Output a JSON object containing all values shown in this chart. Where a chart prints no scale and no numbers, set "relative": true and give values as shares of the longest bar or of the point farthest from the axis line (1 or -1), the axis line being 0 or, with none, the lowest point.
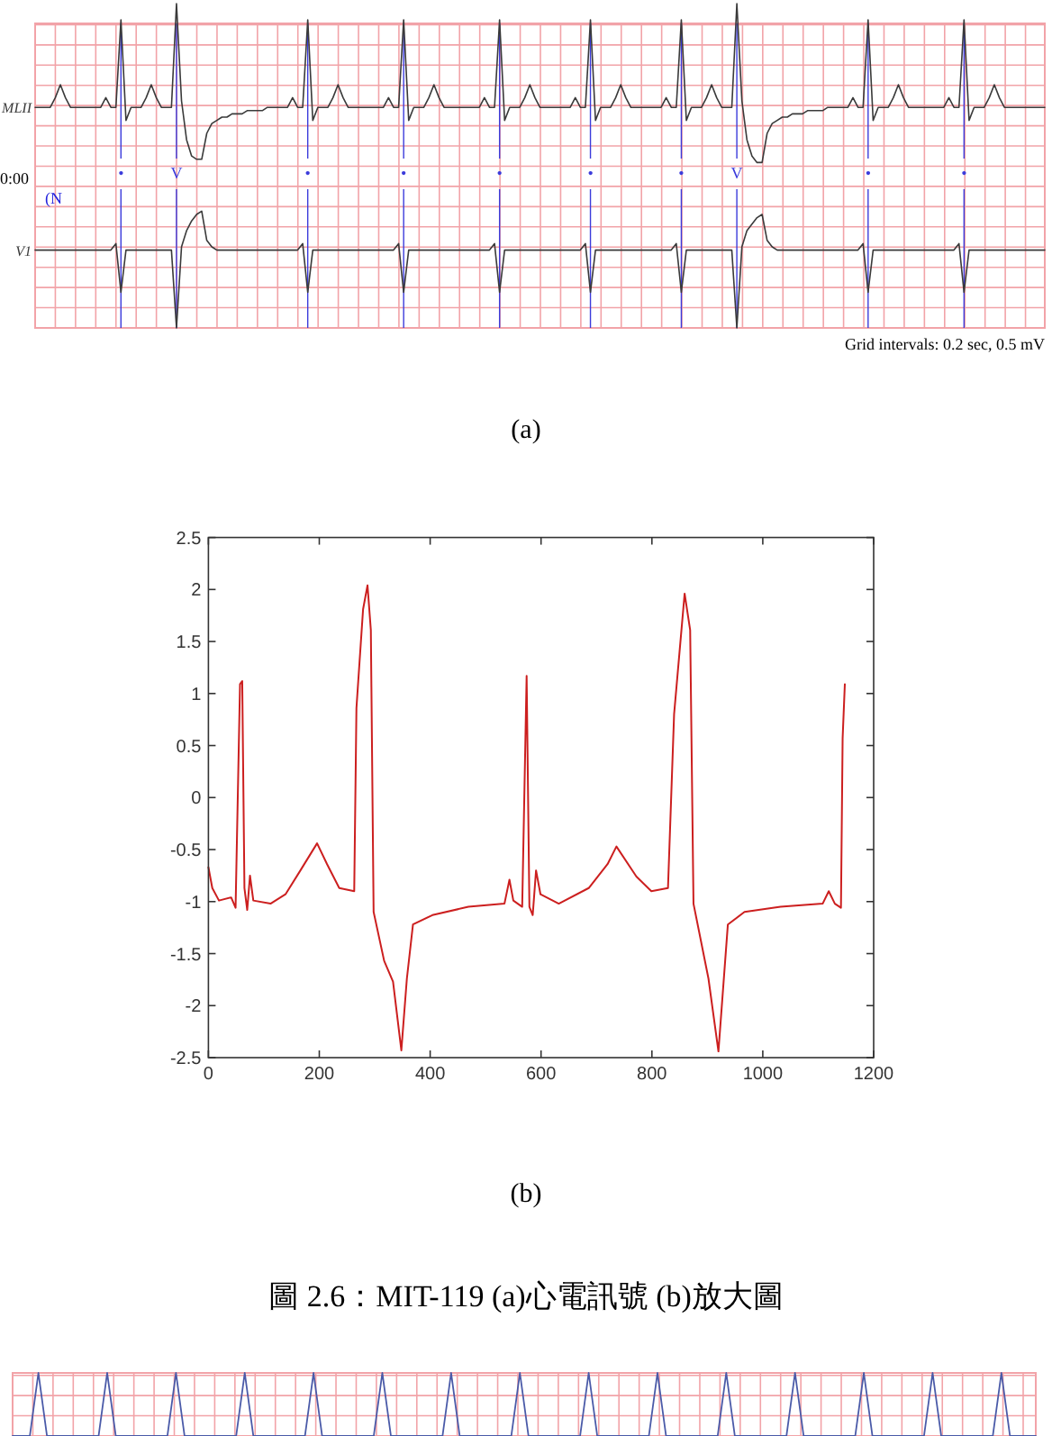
{
  "chart_data": [
    {
      "type": "line",
      "relative": true,
      "grid": true,
      "categories": [
        null,
        null,
        null,
        null,
        null,
        null,
        null,
        null,
        null,
        null,
        null,
        null,
        null,
        null,
        null,
        null,
        null,
        "•",
        null,
        null,
        null,
        null,
        null,
        null,
        null,
        null,
        null,
        null,
        "V",
        null,
        null,
        null,
        null,
        null,
        null,
        null,
        null,
        null,
        null,
        null,
        null,
        null,
        null,
        null,
        null,
        null,
        null,
        null,
        null,
        null,
        null,
        null,
        null,
        null,
        "•",
        null,
        null,
        null,
        null,
        null,
        null,
        null,
        null,
        null,
        null,
        null,
        null,
        null,
        null,
        null,
        null,
        null,
        null,
        "•",
        null,
        null,
        null,
        null,
        null,
        null,
        null,
        null,
        null,
        null,
        null,
        null,
        null,
        null,
        null,
        null,
        null,
        null,
        "•",
        null,
        null,
        null,
        null,
        null,
        null,
        null,
        null,
        null,
        null,
        null,
        null,
        null,
        null,
        null,
        null,
        null,
        "•",
        null,
        null,
        null,
        null,
        null,
        null,
        null,
        null,
        null,
        null,
        null,
        null,
        null,
        null,
        null,
        null,
        null,
        "•",
        null,
        null,
        null,
        null,
        null,
        null,
        null,
        null,
        null,
        null,
        "V",
        null,
        null,
        null,
        null,
        null,
        null,
        null,
        null,
        null,
        null,
        null,
        null,
        null,
        null,
        null,
        null,
        null,
        null,
        null,
        null,
        null,
        null,
        null,
        null,
        null,
        "•",
        null,
        null,
        null,
        null,
        null,
        null,
        null,
        null,
        null,
        null,
        null,
        null,
        null,
        null,
        null,
        null,
        null,
        null,
        "•",
        null,
        null,
        null,
        null,
        null,
        null,
        null,
        null,
        null,
        null,
        null,
        null,
        null,
        null,
        null,
        null
      ],
      "series": [
        {
          "name": "MLII",
          "color": "#3a3a3a",
          "values": [
            0.68,
            0.68,
            0.68,
            0.68,
            0.71,
            0.75,
            0.71,
            0.68,
            0.68,
            0.68,
            0.68,
            0.68,
            0.68,
            0.68,
            0.71,
            0.68,
            0.68,
            0.95,
            0.64,
            0.68,
            0.68,
            0.68,
            0.71,
            0.75,
            0.71,
            0.68,
            0.68,
            0.68,
            1,
            0.7,
            0.58,
            0.53,
            0.52,
            0.52,
            0.6,
            0.63,
            0.64,
            0.65,
            0.65,
            0.66,
            0.66,
            0.66,
            0.67,
            0.67,
            0.67,
            0.67,
            0.68,
            0.68,
            0.68,
            0.68,
            0.68,
            0.71,
            0.68,
            0.68,
            0.95,
            0.64,
            0.68,
            0.68,
            0.68,
            0.71,
            0.75,
            0.71,
            0.68,
            0.68,
            0.68,
            0.68,
            0.68,
            0.68,
            0.68,
            0.68,
            0.71,
            0.68,
            0.68,
            0.95,
            0.64,
            0.68,
            0.68,
            0.68,
            0.71,
            0.75,
            0.71,
            0.68,
            0.68,
            0.68,
            0.68,
            0.68,
            0.68,
            0.68,
            0.68,
            0.71,
            0.68,
            0.68,
            0.95,
            0.64,
            0.68,
            0.68,
            0.68,
            0.71,
            0.75,
            0.71,
            0.68,
            0.68,
            0.68,
            0.68,
            0.68,
            0.68,
            0.68,
            0.71,
            0.68,
            0.68,
            0.95,
            0.64,
            0.68,
            0.68,
            0.68,
            0.71,
            0.75,
            0.71,
            0.68,
            0.68,
            0.68,
            0.68,
            0.68,
            0.68,
            0.68,
            0.71,
            0.68,
            0.68,
            0.95,
            0.64,
            0.68,
            0.68,
            0.68,
            0.71,
            0.75,
            0.71,
            0.68,
            0.68,
            0.68,
            1,
            0.7,
            0.58,
            0.53,
            0.51,
            0.51,
            0.6,
            0.63,
            0.64,
            0.65,
            0.65,
            0.66,
            0.66,
            0.66,
            0.67,
            0.67,
            0.67,
            0.67,
            0.68,
            0.68,
            0.68,
            0.68,
            0.68,
            0.71,
            0.68,
            0.68,
            0.95,
            0.64,
            0.68,
            0.68,
            0.68,
            0.71,
            0.75,
            0.71,
            0.68,
            0.68,
            0.68,
            0.68,
            0.68,
            0.68,
            0.68,
            0.68,
            0.71,
            0.68,
            0.68,
            0.95,
            0.64,
            0.68,
            0.68,
            0.68,
            0.71,
            0.75,
            0.71,
            0.68,
            0.68,
            0.68,
            0.68,
            0.68,
            0.68,
            0.68,
            0.68,
            0.68
          ]
        },
        {
          "name": "V1",
          "color": "#3a3a3a",
          "values": [
            0.24,
            0.24,
            0.24,
            0.24,
            0.24,
            0.24,
            0.24,
            0.24,
            0.24,
            0.24,
            0.24,
            0.24,
            0.24,
            0.24,
            0.24,
            0.24,
            0.26,
            0.11,
            0.24,
            0.24,
            0.24,
            0.24,
            0.24,
            0.24,
            0.24,
            0.24,
            0.24,
            0.24,
            0,
            0.25,
            0.3,
            0.33,
            0.35,
            0.36,
            0.27,
            0.25,
            0.24,
            0.24,
            0.24,
            0.24,
            0.24,
            0.24,
            0.24,
            0.24,
            0.24,
            0.24,
            0.24,
            0.24,
            0.24,
            0.24,
            0.24,
            0.24,
            0.24,
            0.26,
            0.11,
            0.24,
            0.24,
            0.24,
            0.24,
            0.24,
            0.24,
            0.24,
            0.24,
            0.24,
            0.24,
            0.24,
            0.24,
            0.24,
            0.24,
            0.24,
            0.24,
            0.24,
            0.26,
            0.11,
            0.24,
            0.24,
            0.24,
            0.24,
            0.24,
            0.24,
            0.24,
            0.24,
            0.24,
            0.24,
            0.24,
            0.24,
            0.24,
            0.24,
            0.24,
            0.24,
            0.24,
            0.26,
            0.11,
            0.24,
            0.24,
            0.24,
            0.24,
            0.24,
            0.24,
            0.24,
            0.24,
            0.24,
            0.24,
            0.24,
            0.24,
            0.24,
            0.24,
            0.24,
            0.24,
            0.26,
            0.11,
            0.24,
            0.24,
            0.24,
            0.24,
            0.24,
            0.24,
            0.24,
            0.24,
            0.24,
            0.24,
            0.24,
            0.24,
            0.24,
            0.24,
            0.24,
            0.24,
            0.26,
            0.11,
            0.24,
            0.24,
            0.24,
            0.24,
            0.24,
            0.24,
            0.24,
            0.24,
            0.24,
            0.24,
            0,
            0.25,
            0.3,
            0.32,
            0.34,
            0.35,
            0.27,
            0.25,
            0.24,
            0.24,
            0.24,
            0.24,
            0.24,
            0.24,
            0.24,
            0.24,
            0.24,
            0.24,
            0.24,
            0.24,
            0.24,
            0.24,
            0.24,
            0.24,
            0.24,
            0.26,
            0.11,
            0.24,
            0.24,
            0.24,
            0.24,
            0.24,
            0.24,
            0.24,
            0.24,
            0.24,
            0.24,
            0.24,
            0.24,
            0.24,
            0.24,
            0.24,
            0.24,
            0.24,
            0.26,
            0.11,
            0.24,
            0.24,
            0.24,
            0.24,
            0.24,
            0.24,
            0.24,
            0.24,
            0.24,
            0.24,
            0.24,
            0.24,
            0.24,
            0.24,
            0.24,
            0.24
          ]
        }
      ],
      "annotations": [
        "0:00",
        "(N",
        "Grid intervals: 0.2 sec, 0.5 mV",
        "(a)"
      ]
    },
    {
      "type": "line",
      "xlim": [
        0,
        1200
      ],
      "xticks": [
        0,
        200,
        400,
        600,
        800,
        1000,
        1200
      ],
      "ylim": [
        -2.5,
        2.5
      ],
      "yticks": [
        -2.5,
        -2,
        -1.5,
        -1,
        -0.5,
        0,
        0.5,
        1,
        1.5,
        2,
        2.5
      ],
      "series": [
        {
          "color": "#cc1f1f",
          "x": [
            0,
            7,
            19,
            41,
            49,
            57,
            61,
            65,
            70,
            75,
            81,
            112,
            139,
            166,
            196,
            214,
            236,
            263,
            267,
            279,
            287,
            293,
            298,
            317,
            333,
            348,
            358,
            369,
            404,
            469,
            534,
            543,
            550,
            566,
            574,
            579,
            585,
            591,
            599,
            632,
            686,
            720,
            736,
            772,
            799,
            829,
            840,
            859,
            869,
            875,
            902,
            920,
            937,
            967,
            1032,
            1108,
            1119,
            1130,
            1141,
            1144,
            1148
          ],
          "values": [
            -0.67,
            -0.87,
            -0.99,
            -0.96,
            -1.06,
            1.09,
            1.12,
            -0.87,
            -1.08,
            -0.75,
            -0.99,
            -1.02,
            -0.93,
            -0.7,
            -0.44,
            -0.64,
            -0.87,
            -0.9,
            0.86,
            1.81,
            2.04,
            1.61,
            -1.1,
            -1.57,
            -1.77,
            -2.43,
            -1.74,
            -1.22,
            -1.13,
            -1.05,
            -1.02,
            -0.79,
            -0.99,
            -1.05,
            1.17,
            -1.05,
            -1.13,
            -0.7,
            -0.93,
            -1.02,
            -0.87,
            -0.64,
            -0.47,
            -0.76,
            -0.9,
            -0.87,
            0.8,
            1.96,
            1.61,
            -1.02,
            -1.74,
            -2.44,
            -1.22,
            -1.1,
            -1.05,
            -1.02,
            -0.9,
            -1.02,
            -1.06,
            0.57,
            1.09
          ]
        }
      ],
      "annotations": [
        "(b)",
        "圖 2.6：MIT-119 (a)心電訊號 (b)放大圖"
      ]
    },
    {
      "type": "line",
      "relative": true,
      "grid": true,
      "categories": [
        null,
        null,
        null,
        null,
        null,
        null,
        null,
        null,
        null,
        null,
        null,
        null,
        null,
        null,
        null,
        null,
        null,
        null,
        null,
        null,
        null,
        null,
        null,
        null,
        null,
        null,
        null,
        null,
        null,
        null,
        null,
        null,
        null,
        null,
        null,
        null,
        null,
        null,
        null,
        null,
        null,
        null,
        null,
        null,
        null,
        null,
        null,
        null,
        null,
        null,
        null,
        null,
        null,
        null,
        null,
        null,
        null,
        null,
        null,
        null,
        null,
        null,
        null,
        null,
        null,
        null,
        null,
        null,
        null,
        null,
        null,
        null,
        null,
        null,
        null,
        null,
        null,
        null,
        null,
        null,
        null,
        null,
        null,
        null,
        null,
        null,
        null,
        null,
        null,
        null,
        null,
        null,
        null,
        null,
        null,
        null,
        null,
        null,
        null,
        null,
        null,
        null,
        null,
        null,
        null,
        null,
        null,
        null,
        null,
        null,
        null,
        null,
        null,
        null,
        null,
        null,
        null,
        null,
        null,
        null
      ],
      "series": [
        {
          "color": "#4a5aa8",
          "values": [
            0,
            0,
            0,
            1,
            0,
            0,
            0,
            0,
            0,
            0,
            0,
            1,
            0,
            0,
            0,
            0,
            0,
            0,
            0,
            1,
            0,
            0,
            0,
            0,
            0,
            0,
            0,
            1,
            0,
            0,
            0,
            0,
            0,
            0,
            0,
            1,
            0,
            0,
            0,
            0,
            0,
            0,
            0,
            1,
            0,
            0,
            0,
            0,
            0,
            0,
            0,
            1,
            0,
            0,
            0,
            0,
            0,
            0,
            0,
            1,
            0,
            0,
            0,
            0,
            0,
            0,
            0,
            1,
            0,
            0,
            0,
            0,
            0,
            0,
            0,
            1,
            0,
            0,
            0,
            0,
            0,
            0,
            0,
            1,
            0,
            0,
            0,
            0,
            0,
            0,
            0,
            1,
            0,
            0,
            0,
            0,
            0,
            0,
            0,
            1,
            0,
            0,
            0,
            0,
            0,
            0,
            0,
            1,
            0,
            0,
            0,
            0,
            0,
            0,
            0,
            1,
            0,
            0,
            0,
            0
          ]
        }
      ]
    }
  ]
}
